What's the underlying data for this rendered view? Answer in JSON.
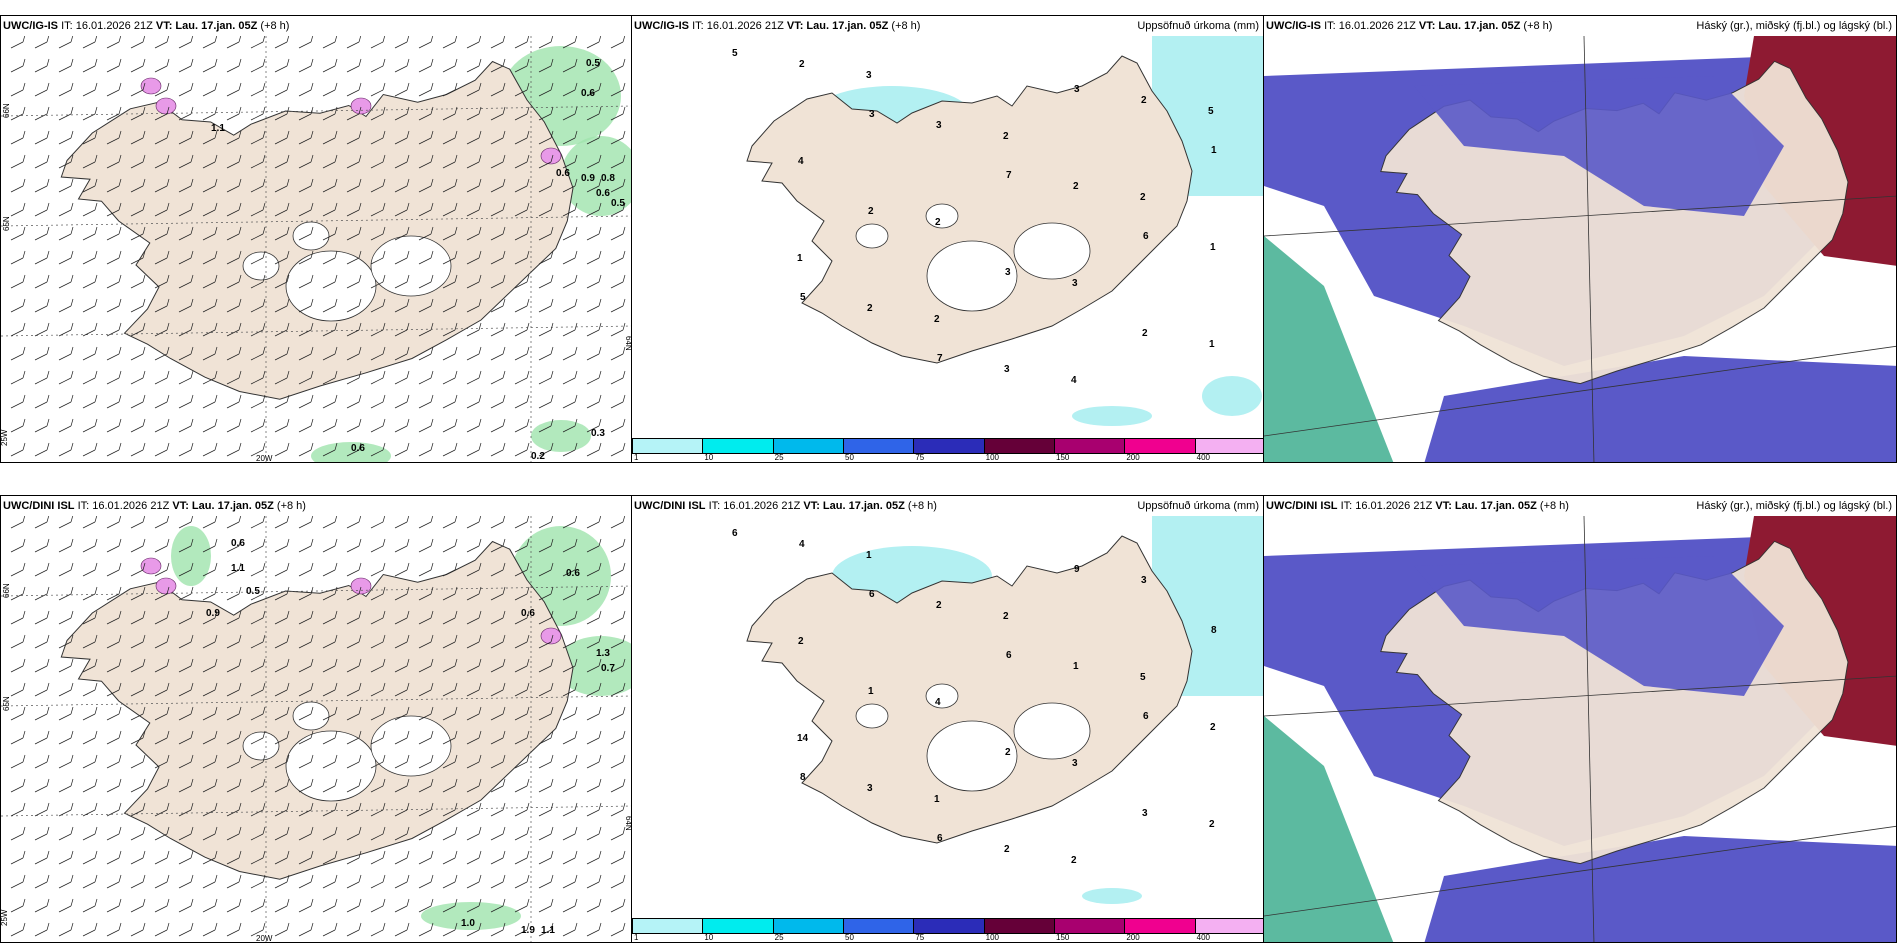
{
  "colors": {
    "land": "#f0e3d6",
    "sea": "#ffffff",
    "precip_light": "#b3f0f2",
    "snow_green": "#9fe4ad",
    "snow_pink": "#e89ae8",
    "cloud_high": "#8e1a32",
    "cloud_mid": "#5a59c8",
    "cloud_low": "#3fae8f"
  },
  "panels": [
    {
      "model": "UWC/IG-IS",
      "it": "IT: 16.01.2026 21Z",
      "vt": "VT: Lau. 17.jan. 05Z",
      "offset": "(+8 h)",
      "right": "",
      "type": "wind",
      "labels": [
        {
          "v": "0.5"
        },
        {
          "v": "0.6"
        },
        {
          "v": "0.6"
        },
        {
          "v": "0.8"
        },
        {
          "v": "0.9"
        },
        {
          "v": "0.6"
        },
        {
          "v": "0.5"
        },
        {
          "v": "1.1"
        },
        {
          "v": "0.6"
        },
        {
          "v": "0.2"
        },
        {
          "v": "0.3"
        }
      ],
      "coords": [
        "66N",
        "65N",
        "64N",
        "25W",
        "20W"
      ]
    },
    {
      "model": "UWC/IG-IS",
      "it": "IT: 16.01.2026 21Z",
      "vt": "VT: Lau. 17.jan. 05Z",
      "offset": "(+8 h)",
      "right": "Uppsöfnuð úrkoma (mm)",
      "type": "precip",
      "labels": [
        {
          "v": "5"
        },
        {
          "v": "3"
        },
        {
          "v": "7"
        },
        {
          "v": "6"
        },
        {
          "v": "5"
        },
        {
          "v": "7"
        },
        {
          "v": "3"
        },
        {
          "v": "1"
        },
        {
          "v": "2"
        },
        {
          "v": "3"
        },
        {
          "v": "2"
        },
        {
          "v": "2"
        },
        {
          "v": "3"
        },
        {
          "v": "2"
        },
        {
          "v": "1"
        },
        {
          "v": "2"
        },
        {
          "v": "3"
        },
        {
          "v": "2"
        },
        {
          "v": "4"
        },
        {
          "v": "2"
        },
        {
          "v": "3"
        },
        {
          "v": "1"
        },
        {
          "v": "3"
        },
        {
          "v": "2"
        },
        {
          "v": "2"
        },
        {
          "v": "1"
        },
        {
          "v": "2"
        },
        {
          "v": "4"
        },
        {
          "v": "5"
        }
      ],
      "colorbar": {
        "colors": [
          "#b5f3f7",
          "#00ecee",
          "#00b9ec",
          "#2f64e8",
          "#2b2cb8",
          "#650038",
          "#a8006f",
          "#f0008f",
          "#f4b0f2"
        ],
        "ticks": [
          "1",
          "10",
          "25",
          "50",
          "75",
          "100",
          "150",
          "200",
          "400"
        ]
      }
    },
    {
      "model": "UWC/IG-IS",
      "it": "IT: 16.01.2026 21Z",
      "vt": "VT: Lau. 17.jan. 05Z",
      "offset": "(+8 h)",
      "right": "Háský (gr.), miðský (fj.bl.) og lágský (bl.)",
      "type": "cloud"
    },
    {
      "model": "UWC/DINI ISL",
      "it": "IT: 16.01.2026 21Z",
      "vt": "VT: Lau. 17.jan. 05Z",
      "offset": "(+8 h)",
      "right": "",
      "type": "wind",
      "labels": [
        {
          "v": "0.6"
        },
        {
          "v": "1.1"
        },
        {
          "v": "0.5"
        },
        {
          "v": "0.9"
        },
        {
          "v": "0.6"
        },
        {
          "v": "0.6"
        },
        {
          "v": "1.3"
        },
        {
          "v": "0.7"
        },
        {
          "v": "1.0"
        },
        {
          "v": "1.9"
        },
        {
          "v": "1.1"
        }
      ],
      "coords": [
        "66N",
        "65N",
        "64N",
        "25W",
        "20W"
      ]
    },
    {
      "model": "UWC/DINI ISL",
      "it": "IT: 16.01.2026 21Z",
      "vt": "VT: Lau. 17.jan. 05Z",
      "offset": "(+8 h)",
      "right": "Uppsöfnuð úrkoma (mm)",
      "type": "precip",
      "labels": [
        {
          "v": "6"
        },
        {
          "v": "6"
        },
        {
          "v": "6"
        },
        {
          "v": "6"
        },
        {
          "v": "8"
        },
        {
          "v": "6"
        },
        {
          "v": "9"
        },
        {
          "v": "8"
        },
        {
          "v": "1"
        },
        {
          "v": "2"
        },
        {
          "v": "3"
        },
        {
          "v": "4"
        },
        {
          "v": "2"
        },
        {
          "v": "1"
        },
        {
          "v": "2"
        },
        {
          "v": "3"
        },
        {
          "v": "2"
        },
        {
          "v": "3"
        },
        {
          "v": "2"
        },
        {
          "v": "4"
        },
        {
          "v": "3"
        },
        {
          "v": "2"
        },
        {
          "v": "1"
        },
        {
          "v": "2"
        },
        {
          "v": "5"
        },
        {
          "v": "14"
        },
        {
          "v": "1"
        },
        {
          "v": "2"
        }
      ],
      "colorbar": {
        "colors": [
          "#b5f3f7",
          "#00ecee",
          "#00b9ec",
          "#2f64e8",
          "#2b2cb8",
          "#650038",
          "#a8006f",
          "#f0008f",
          "#f4b0f2"
        ],
        "ticks": [
          "1",
          "10",
          "25",
          "50",
          "75",
          "100",
          "150",
          "200",
          "400"
        ]
      }
    },
    {
      "model": "UWC/DINI ISL",
      "it": "IT: 16.01.2026 21Z",
      "vt": "VT: Lau. 17.jan. 05Z",
      "offset": "(+8 h)",
      "right": "Háský (gr.), miðský (fj.bl.) og lágský (bl.)",
      "type": "cloud"
    }
  ]
}
